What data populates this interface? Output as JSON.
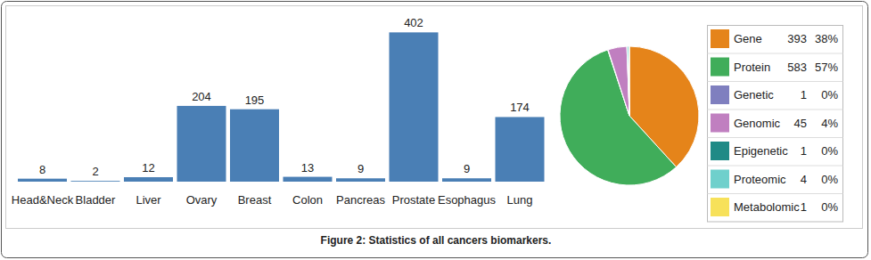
{
  "chart_data": [
    {
      "type": "bar",
      "categories": [
        "Head&Neck",
        "Bladder",
        "Liver",
        "Ovary",
        "Breast",
        "Colon",
        "Pancreas",
        "Prostate",
        "Esophagus",
        "Lung"
      ],
      "values": [
        8,
        2,
        12,
        204,
        195,
        13,
        9,
        402,
        9,
        174
      ],
      "color": "#4a7fb5",
      "ylim": [
        0,
        410
      ],
      "grid": false,
      "data_labels": true,
      "tick_labels": "x"
    },
    {
      "type": "pie",
      "categories": [
        "Gene",
        "Protein",
        "Genetic",
        "Genomic",
        "Epigenetic",
        "Proteomic",
        "Metabolomic"
      ],
      "values": [
        393,
        583,
        1,
        45,
        1,
        4,
        1
      ],
      "percentages": [
        {
          "value": 38,
          "label": "38%"
        },
        {
          "value": 57,
          "label": "57%"
        },
        {
          "value": 0,
          "label": "0%"
        },
        {
          "value": 4,
          "label": "4%"
        },
        {
          "value": 0,
          "label": "0%"
        },
        {
          "value": 0,
          "label": "0%"
        },
        {
          "value": 0,
          "label": "0%"
        }
      ],
      "colors": [
        "#e5841a",
        "#40ad5a",
        "#7f7fbf",
        "#c07fc0",
        "#1f8a86",
        "#6fd0cc",
        "#f7e15a"
      ],
      "legend": "right"
    }
  ],
  "caption": "Figure 2: Statistics of all cancers biomarkers."
}
